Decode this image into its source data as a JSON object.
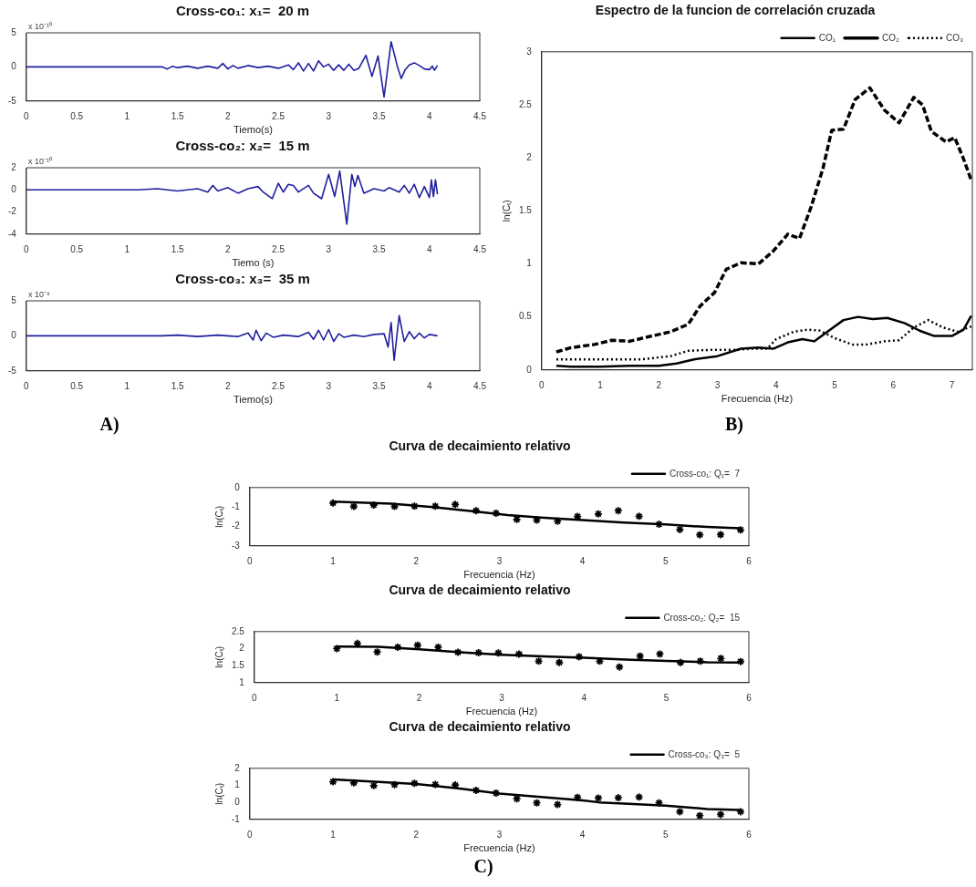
{
  "chart_data": [
    {
      "type": "line",
      "title": "Cross-co₁: x₁=  20 m",
      "xlabel": "Tiemo(s)",
      "annotations": [
        "x 10⁻¹⁰"
      ],
      "xlim": [
        0,
        4.5
      ],
      "xticks": [
        0,
        0.5,
        1,
        1.5,
        2,
        2.5,
        3,
        3.5,
        4,
        4.5
      ],
      "ylim": [
        -5,
        5
      ],
      "yticks": [
        -5,
        0,
        5
      ],
      "x": [
        0,
        1.35,
        1.4,
        1.45,
        1.5,
        1.6,
        1.7,
        1.8,
        1.9,
        1.95,
        2.0,
        2.05,
        2.1,
        2.2,
        2.3,
        2.4,
        2.5,
        2.6,
        2.65,
        2.7,
        2.75,
        2.8,
        2.85,
        2.9,
        2.95,
        3.0,
        3.05,
        3.1,
        3.15,
        3.2,
        3.25,
        3.3,
        3.37,
        3.43,
        3.49,
        3.55,
        3.62,
        3.68,
        3.72,
        3.76,
        3.8,
        3.85,
        3.9,
        3.95,
        4.0,
        4.03,
        4.05,
        4.08
      ],
      "series": [
        {
          "color": "#1f1f9e",
          "values": [
            0,
            0,
            -0.3,
            0.1,
            -0.1,
            0.1,
            -0.2,
            0.1,
            -0.2,
            0.5,
            -0.3,
            0.2,
            -0.2,
            0.2,
            -0.1,
            0.1,
            -0.2,
            0.3,
            -0.4,
            0.6,
            -0.6,
            0.5,
            -0.6,
            0.9,
            0,
            0.4,
            -0.5,
            0.3,
            -0.5,
            0.4,
            -0.5,
            -0.2,
            1.7,
            -1.4,
            1.6,
            -4.4,
            3.7,
            0.2,
            -1.7,
            -0.4,
            0.3,
            0.6,
            0.2,
            -0.3,
            -0.4,
            0.1,
            -0.5,
            0.2
          ]
        }
      ]
    },
    {
      "type": "line",
      "title": "Cross-co₂: x₂=  15 m",
      "xlabel": "Tiemo (s)",
      "annotations": [
        "x 10⁻¹⁰"
      ],
      "xlim": [
        0,
        4.5
      ],
      "xticks": [
        0,
        0.5,
        1,
        1.5,
        2,
        2.5,
        3,
        3.5,
        4,
        4.5
      ],
      "ylim": [
        -4,
        2
      ],
      "yticks": [
        -4,
        -2,
        0,
        2
      ],
      "x": [
        0,
        1.1,
        1.3,
        1.5,
        1.7,
        1.8,
        1.85,
        1.9,
        2.0,
        2.1,
        2.2,
        2.3,
        2.35,
        2.44,
        2.5,
        2.55,
        2.6,
        2.65,
        2.7,
        2.8,
        2.85,
        2.93,
        3.0,
        3.06,
        3.11,
        3.18,
        3.23,
        3.26,
        3.29,
        3.35,
        3.45,
        3.55,
        3.6,
        3.7,
        3.75,
        3.8,
        3.85,
        3.9,
        3.95,
        4.0,
        4.02,
        4.04,
        4.06,
        4.08
      ],
      "series": [
        {
          "color": "#1f1f9e",
          "values": [
            0,
            0,
            0.1,
            -0.1,
            0.1,
            -0.2,
            0.4,
            -0.1,
            0.2,
            -0.3,
            0.1,
            0.3,
            -0.2,
            -0.8,
            0.6,
            -0.2,
            0.5,
            0.4,
            -0.2,
            0.4,
            -0.3,
            -0.8,
            1.4,
            -0.6,
            1.7,
            -3.1,
            1.4,
            0.3,
            1.3,
            -0.3,
            0.1,
            -0.1,
            0.2,
            -0.2,
            0.4,
            -0.3,
            0.5,
            -0.7,
            0.3,
            -0.7,
            0.9,
            -0.6,
            0.9,
            -0.4
          ]
        }
      ]
    },
    {
      "type": "line",
      "title": "Cross-co₃: x₃=  35 m",
      "xlabel": "Tiemo(s)",
      "annotations": [
        "x 10⁻⁹"
      ],
      "xlim": [
        0,
        4.5
      ],
      "xticks": [
        0,
        0.5,
        1,
        1.5,
        2,
        2.5,
        3,
        3.5,
        4,
        4.5
      ],
      "ylim": [
        -5,
        5
      ],
      "yticks": [
        -5,
        0,
        5
      ],
      "x": [
        0,
        1.35,
        1.5,
        1.7,
        1.9,
        2.1,
        2.2,
        2.25,
        2.28,
        2.33,
        2.38,
        2.45,
        2.55,
        2.7,
        2.8,
        2.85,
        2.9,
        2.95,
        3.0,
        3.05,
        3.1,
        3.15,
        3.25,
        3.35,
        3.45,
        3.55,
        3.59,
        3.62,
        3.65,
        3.7,
        3.75,
        3.8,
        3.85,
        3.9,
        3.95,
        4.0,
        4.08
      ],
      "series": [
        {
          "color": "#1f1f9e",
          "values": [
            0,
            0,
            0.1,
            -0.1,
            0.1,
            -0.1,
            0.4,
            -0.6,
            0.8,
            -0.7,
            0.4,
            -0.2,
            0.1,
            -0.1,
            0.5,
            -0.5,
            0.8,
            -0.6,
            0.9,
            -0.8,
            0.3,
            -0.2,
            0.1,
            -0.1,
            0.2,
            0.3,
            -1.6,
            1.9,
            -3.5,
            2.9,
            -0.8,
            0.6,
            -0.4,
            0.4,
            -0.3,
            0.2,
            0
          ]
        }
      ]
    },
    {
      "type": "line",
      "title": "Espectro de la funcion de correlación cruzada",
      "xlabel": "Frecuencia (Hz)",
      "ylabel": "ln(Cₜ)",
      "legend": "top right",
      "xlim": [
        0,
        7.35
      ],
      "xticks": [
        0,
        1,
        2,
        3,
        4,
        5,
        6,
        7
      ],
      "ylim": [
        0,
        3
      ],
      "yticks": [
        0,
        0.5,
        1,
        1.5,
        2,
        2.5,
        3
      ],
      "series": [
        {
          "name": "CO₁",
          "color": "#000000",
          "line_style": "solid",
          "x": [
            0.25,
            0.5,
            1,
            1.5,
            2,
            2.3,
            2.6,
            3,
            3.4,
            3.7,
            3.95,
            4.2,
            4.45,
            4.65,
            4.9,
            5.15,
            5.4,
            5.65,
            5.9,
            6.2,
            6.45,
            6.7,
            7,
            7.2,
            7.33
          ],
          "values": [
            0.04,
            0.03,
            0.03,
            0.04,
            0.04,
            0.06,
            0.1,
            0.13,
            0.2,
            0.21,
            0.2,
            0.26,
            0.29,
            0.27,
            0.37,
            0.47,
            0.5,
            0.48,
            0.49,
            0.44,
            0.37,
            0.32,
            0.32,
            0.38,
            0.51
          ]
        },
        {
          "name": "CO₂",
          "color": "#000000",
          "line_style": "dashed",
          "x": [
            0.25,
            0.5,
            0.9,
            1.2,
            1.5,
            1.8,
            2.2,
            2.5,
            2.7,
            2.95,
            3.15,
            3.4,
            3.7,
            3.95,
            4.2,
            4.4,
            4.6,
            4.8,
            4.95,
            5.15,
            5.35,
            5.6,
            5.85,
            6.1,
            6.35,
            6.5,
            6.65,
            6.9,
            7.05,
            7.2,
            7.33
          ],
          "values": [
            0.17,
            0.21,
            0.24,
            0.28,
            0.27,
            0.31,
            0.36,
            0.43,
            0.6,
            0.73,
            0.95,
            1.01,
            1.0,
            1.12,
            1.28,
            1.24,
            1.54,
            1.9,
            2.26,
            2.27,
            2.55,
            2.66,
            2.45,
            2.33,
            2.57,
            2.5,
            2.25,
            2.15,
            2.19,
            1.99,
            1.79
          ]
        },
        {
          "name": "CO₃",
          "color": "#000000",
          "line_style": "dotted",
          "x": [
            0.25,
            1,
            1.7,
            2.2,
            2.5,
            2.9,
            3.3,
            3.6,
            3.85,
            4,
            4.3,
            4.55,
            4.75,
            5,
            5.3,
            5.55,
            5.85,
            6.1,
            6.35,
            6.6,
            6.85,
            7.1,
            7.33
          ],
          "values": [
            0.1,
            0.1,
            0.1,
            0.13,
            0.18,
            0.19,
            0.19,
            0.2,
            0.2,
            0.29,
            0.36,
            0.38,
            0.37,
            0.3,
            0.24,
            0.24,
            0.27,
            0.28,
            0.4,
            0.47,
            0.4,
            0.36,
            0.41
          ]
        }
      ]
    },
    {
      "type": "other",
      "title": "A)"
    },
    {
      "type": "other",
      "title": "B)"
    },
    {
      "type": "scatter",
      "title": "Curva de decaimiento relativo",
      "xlabel": "Frecuencia (Hz)",
      "ylabel": "ln(Cₜ)",
      "legend": "top right",
      "marker": "cross",
      "xlim": [
        0,
        6
      ],
      "xticks": [
        0,
        1,
        2,
        3,
        4,
        5,
        6
      ],
      "ylim": [
        -3,
        0
      ],
      "yticks": [
        -3,
        -2,
        -1,
        0
      ],
      "x": [
        1,
        1.25,
        1.49,
        1.74,
        1.98,
        2.23,
        2.47,
        2.72,
        2.96,
        3.21,
        3.45,
        3.7,
        3.94,
        4.19,
        4.43,
        4.68,
        4.92,
        5.17,
        5.41,
        5.66,
        5.9
      ],
      "series": [
        {
          "color": "#000000",
          "values": [
            -0.8,
            -0.97,
            -0.9,
            -0.97,
            -0.96,
            -0.96,
            -0.87,
            -1.19,
            -1.32,
            -1.64,
            -1.67,
            -1.73,
            -1.49,
            -1.36,
            -1.19,
            -1.48,
            -1.89,
            -2.16,
            -2.43,
            -2.42,
            -2.18
          ]
        },
        {
          "type": "line",
          "marker": "none",
          "name": "Cross-co₁: Q₁=  7",
          "color": "#000000",
          "x": [
            1,
            1.7,
            2.2,
            2.7,
            3.1,
            3.5,
            4,
            4.5,
            5,
            5.5,
            5.9
          ],
          "values": [
            -0.72,
            -0.83,
            -1.0,
            -1.23,
            -1.42,
            -1.54,
            -1.67,
            -1.8,
            -1.9,
            -2.03,
            -2.1
          ]
        }
      ]
    },
    {
      "type": "scatter",
      "title": "Curva de decaimiento relativo",
      "xlabel": "Frecuencia (Hz)",
      "ylabel": "ln(Cₜ)",
      "legend": "top right",
      "marker": "cross",
      "xlim": [
        0,
        6
      ],
      "xticks": [
        0,
        1,
        2,
        3,
        4,
        5,
        6
      ],
      "ylim": [
        1,
        2.5
      ],
      "yticks": [
        1,
        1.5,
        2,
        2.5
      ],
      "x": [
        1,
        1.25,
        1.49,
        1.74,
        1.98,
        2.23,
        2.47,
        2.72,
        2.96,
        3.21,
        3.45,
        3.7,
        3.94,
        4.19,
        4.43,
        4.68,
        4.92,
        5.17,
        5.41,
        5.66,
        5.9
      ],
      "series": [
        {
          "color": "#000000",
          "values": [
            2.0,
            2.15,
            1.9,
            2.04,
            2.1,
            2.04,
            1.89,
            1.88,
            1.87,
            1.84,
            1.63,
            1.59,
            1.76,
            1.63,
            1.46,
            1.78,
            1.84,
            1.59,
            1.63,
            1.71,
            1.62
          ]
        },
        {
          "type": "line",
          "marker": "none",
          "name": "Cross-co₂: Q₂=  15",
          "color": "#000000",
          "x": [
            1,
            1.5,
            2,
            2.5,
            3,
            3.5,
            4,
            4.5,
            5,
            5.5,
            5.9
          ],
          "values": [
            2.06,
            2.05,
            1.98,
            1.89,
            1.82,
            1.77,
            1.73,
            1.68,
            1.64,
            1.6,
            1.59
          ]
        }
      ]
    },
    {
      "type": "scatter",
      "title": "Curva de decaimiento relativo",
      "xlabel": "Frecuencia (Hz)",
      "ylabel": "ln(Cₜ)",
      "legend": "top right",
      "marker": "cross",
      "xlim": [
        0,
        6
      ],
      "xticks": [
        0,
        1,
        2,
        3,
        4,
        5,
        6
      ],
      "ylim": [
        -1,
        2
      ],
      "yticks": [
        -1,
        0,
        1,
        2
      ],
      "x": [
        1,
        1.25,
        1.49,
        1.74,
        1.98,
        2.23,
        2.47,
        2.72,
        2.96,
        3.21,
        3.45,
        3.7,
        3.94,
        4.19,
        4.43,
        4.68,
        4.92,
        5.17,
        5.41,
        5.66,
        5.9
      ],
      "series": [
        {
          "color": "#000000",
          "values": [
            1.21,
            1.14,
            0.98,
            1.04,
            1.12,
            1.05,
            1.02,
            0.7,
            0.54,
            0.21,
            -0.03,
            -0.13,
            0.29,
            0.25,
            0.27,
            0.31,
            -0.03,
            -0.55,
            -0.78,
            -0.71,
            -0.55
          ]
        },
        {
          "type": "line",
          "marker": "none",
          "name": "Cross-co₃: Q₃=  5",
          "color": "#000000",
          "x": [
            1,
            1.5,
            2,
            2.5,
            3,
            3.5,
            4,
            4.2,
            4.5,
            5,
            5.5,
            5.9
          ],
          "values": [
            1.34,
            1.21,
            1.08,
            0.83,
            0.51,
            0.31,
            0.12,
            0.0,
            -0.07,
            -0.2,
            -0.39,
            -0.45
          ]
        }
      ]
    },
    {
      "type": "other",
      "title": "C)"
    }
  ]
}
